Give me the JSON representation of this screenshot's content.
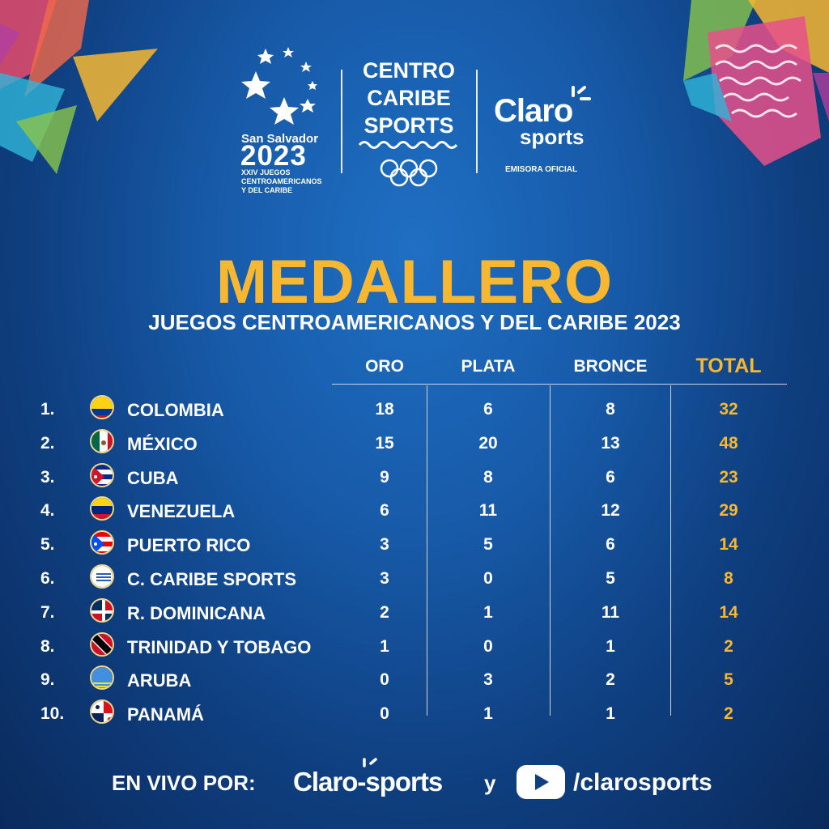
{
  "logos": {
    "event_city": "San Salvador",
    "event_year": "2023",
    "event_sub": [
      "XXIV JUEGOS",
      "CENTROAMERICANOS",
      "Y DEL CARIBE"
    ],
    "ccs_lines": [
      "CENTRO",
      "CARIBE",
      "SPORTS"
    ],
    "claro_main": "Claro",
    "claro_sports": "sports",
    "emisora": "EMISORA OFICIAL"
  },
  "title": "MEDALLERO",
  "subtitle": "JUEGOS CENTROAMERICANOS Y DEL CARIBE 2023",
  "columns": {
    "gold": "ORO",
    "silver": "PLATA",
    "bronze": "BRONCE",
    "total": "TOTAL"
  },
  "rows": [
    {
      "rank": "1.",
      "flag": "colombia-flag",
      "name": "COLOMBIA",
      "gold": "18",
      "silver": "6",
      "bronze": "8",
      "total": "32"
    },
    {
      "rank": "2.",
      "flag": "mexico-flag",
      "name": "MÉXICO",
      "gold": "15",
      "silver": "20",
      "bronze": "13",
      "total": "48"
    },
    {
      "rank": "3.",
      "flag": "cuba-flag",
      "name": "CUBA",
      "gold": "9",
      "silver": "8",
      "bronze": "6",
      "total": "23"
    },
    {
      "rank": "4.",
      "flag": "venezuela-flag",
      "name": "VENEZUELA",
      "gold": "6",
      "silver": "11",
      "bronze": "12",
      "total": "29"
    },
    {
      "rank": "5.",
      "flag": "puerto-rico-flag",
      "name": "PUERTO RICO",
      "gold": "3",
      "silver": "5",
      "bronze": "6",
      "total": "14"
    },
    {
      "rank": "6.",
      "flag": "centro-caribe-sports-logo",
      "name": "C. CARIBE SPORTS",
      "gold": "3",
      "silver": "0",
      "bronze": "5",
      "total": "8"
    },
    {
      "rank": "7.",
      "flag": "dominican-republic-flag",
      "name": "R. DOMINICANA",
      "gold": "2",
      "silver": "1",
      "bronze": "11",
      "total": "14"
    },
    {
      "rank": "8.",
      "flag": "trinidad-tobago-flag",
      "name": "TRINIDAD Y TOBAGO",
      "gold": "1",
      "silver": "0",
      "bronze": "1",
      "total": "2"
    },
    {
      "rank": "9.",
      "flag": "aruba-flag",
      "name": "ARUBA",
      "gold": "0",
      "silver": "3",
      "bronze": "2",
      "total": "5"
    },
    {
      "rank": "10.",
      "flag": "panama-flag",
      "name": "PANAMÁ",
      "gold": "0",
      "silver": "1",
      "bronze": "1",
      "total": "2"
    }
  ],
  "footer": {
    "label": "EN VIVO POR:",
    "claro": "Claro",
    "sports": "sports",
    "and": "y",
    "youtube_handle": "/clarosports"
  },
  "colors": {
    "accent": "#f7b731",
    "background": "#175aa8"
  }
}
